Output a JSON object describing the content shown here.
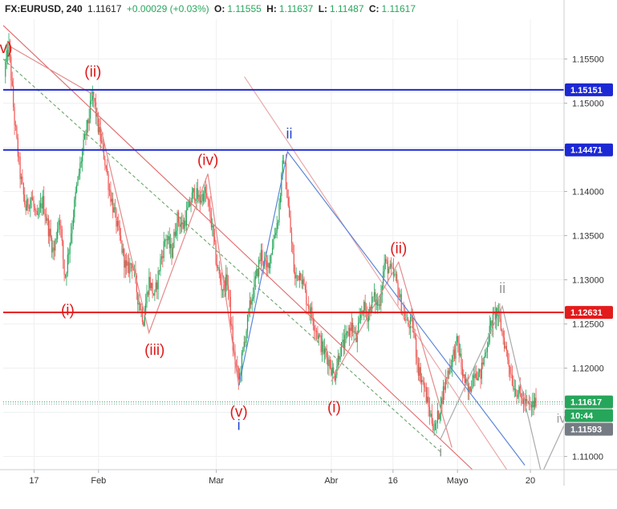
{
  "header": {
    "symbol": "FX:EURUSD, 240",
    "last": "1.11617",
    "change": "+0.00029 (+0.03%)",
    "open_label": "O:",
    "open": "1.11555",
    "high_label": "H:",
    "high": "1.11637",
    "low_label": "L:",
    "low": "1.11487",
    "close_label": "C:",
    "close": "1.11617"
  },
  "chart_data": {
    "type": "candlestick",
    "ylim": [
      1.1085,
      1.1595
    ],
    "xlim": [
      0,
      100
    ],
    "y_ticks": [
      "1.15500",
      "1.15000",
      "1.14500",
      "1.14000",
      "1.13500",
      "1.13000",
      "1.12500",
      "1.12000",
      "1.11500",
      "1.11000"
    ],
    "x_ticks": [
      {
        "label": "17",
        "x": 5.5
      },
      {
        "label": "Feb",
        "x": 17
      },
      {
        "label": "Mar",
        "x": 38
      },
      {
        "label": "Abr",
        "x": 58.5
      },
      {
        "label": "16",
        "x": 69.5
      },
      {
        "label": "Mayo",
        "x": 81
      },
      {
        "label": "20",
        "x": 94
      }
    ],
    "path": [
      [
        0,
        1.153
      ],
      [
        1,
        1.1565
      ],
      [
        2,
        1.148
      ],
      [
        3,
        1.142
      ],
      [
        4,
        1.138
      ],
      [
        5,
        1.1395
      ],
      [
        6,
        1.1365
      ],
      [
        7,
        1.139
      ],
      [
        8,
        1.136
      ],
      [
        9,
        1.133
      ],
      [
        10,
        1.1375
      ],
      [
        11,
        1.13
      ],
      [
        12,
        1.135
      ],
      [
        13,
        1.14
      ],
      [
        14,
        1.144
      ],
      [
        15,
        1.1475
      ],
      [
        16,
        1.151
      ],
      [
        17,
        1.147
      ],
      [
        18,
        1.144
      ],
      [
        19,
        1.14
      ],
      [
        20,
        1.137
      ],
      [
        21,
        1.134
      ],
      [
        22,
        1.131
      ],
      [
        23,
        1.132
      ],
      [
        24,
        1.128
      ],
      [
        25,
        1.1255
      ],
      [
        26,
        1.13
      ],
      [
        27,
        1.128
      ],
      [
        28,
        1.132
      ],
      [
        29,
        1.135
      ],
      [
        30,
        1.133
      ],
      [
        31,
        1.137
      ],
      [
        32,
        1.136
      ],
      [
        33,
        1.138
      ],
      [
        34,
        1.14
      ],
      [
        35,
        1.139
      ],
      [
        36,
        1.14
      ],
      [
        37,
        1.137
      ],
      [
        38,
        1.132
      ],
      [
        39,
        1.129
      ],
      [
        40,
        1.13
      ],
      [
        41,
        1.122
      ],
      [
        42,
        1.1185
      ],
      [
        43,
        1.123
      ],
      [
        44,
        1.127
      ],
      [
        45,
        1.13
      ],
      [
        46,
        1.133
      ],
      [
        47,
        1.131
      ],
      [
        48,
        1.134
      ],
      [
        49,
        1.137
      ],
      [
        50,
        1.144
      ],
      [
        51,
        1.137
      ],
      [
        52,
        1.13
      ],
      [
        53,
        1.131
      ],
      [
        54,
        1.128
      ],
      [
        55,
        1.126
      ],
      [
        56,
        1.124
      ],
      [
        57,
        1.122
      ],
      [
        58,
        1.121
      ],
      [
        59,
        1.119
      ],
      [
        60,
        1.122
      ],
      [
        61,
        1.123
      ],
      [
        62,
        1.125
      ],
      [
        63,
        1.123
      ],
      [
        64,
        1.127
      ],
      [
        65,
        1.126
      ],
      [
        66,
        1.128
      ],
      [
        67,
        1.127
      ],
      [
        68,
        1.132
      ],
      [
        69,
        1.131
      ],
      [
        70,
        1.13
      ],
      [
        71,
        1.127
      ],
      [
        72,
        1.125
      ],
      [
        73,
        1.125
      ],
      [
        74,
        1.12
      ],
      [
        75,
        1.118
      ],
      [
        76,
        1.115
      ],
      [
        77,
        1.113
      ],
      [
        78,
        1.116
      ],
      [
        79,
        1.119
      ],
      [
        80,
        1.121
      ],
      [
        81,
        1.123
      ],
      [
        82,
        1.119
      ],
      [
        83,
        1.117
      ],
      [
        84,
        1.12
      ],
      [
        85,
        1.119
      ],
      [
        86,
        1.122
      ],
      [
        87,
        1.125
      ],
      [
        88,
        1.1265
      ],
      [
        89,
        1.124
      ],
      [
        90,
        1.121
      ],
      [
        91,
        1.118
      ],
      [
        92,
        1.117
      ],
      [
        93,
        1.116
      ],
      [
        94,
        1.1155
      ],
      [
        95,
        1.1162
      ]
    ],
    "horizontal_lines": [
      {
        "price": 1.15151,
        "color": "#1c28d4",
        "label": "1.15151"
      },
      {
        "price": 1.14471,
        "color": "#1c28d4",
        "label": "1.14471"
      },
      {
        "price": 1.12631,
        "color": "#e31b1b",
        "label": "1.12631"
      }
    ],
    "price_tags": [
      {
        "label": "1.11617",
        "price": 1.11617,
        "color": "#26a65b"
      },
      {
        "label": "10:44",
        "price": 1.1145,
        "color": "#26a65b"
      },
      {
        "label": "1.11593",
        "price": 1.11593,
        "color": "#757b83"
      }
    ],
    "wave_labels": [
      {
        "text": "v)",
        "x": 0.5,
        "y": 1.1557,
        "color": "#e01a1a",
        "size": 19
      },
      {
        "text": "(ii)",
        "x": 16,
        "y": 1.153,
        "color": "#e01a1a",
        "size": 19
      },
      {
        "text": "(iv)",
        "x": 36.5,
        "y": 1.143,
        "color": "#e01a1a",
        "size": 19
      },
      {
        "text": "(i)",
        "x": 11.5,
        "y": 1.126,
        "color": "#e01a1a",
        "size": 19
      },
      {
        "text": "(iii)",
        "x": 27,
        "y": 1.1215,
        "color": "#e01a1a",
        "size": 19
      },
      {
        "text": "(v)",
        "x": 42,
        "y": 1.1145,
        "color": "#e01a1a",
        "size": 19
      },
      {
        "text": "(i)",
        "x": 59,
        "y": 1.115,
        "color": "#e01a1a",
        "size": 19
      },
      {
        "text": "(ii)",
        "x": 70.5,
        "y": 1.133,
        "color": "#e01a1a",
        "size": 19
      },
      {
        "text": "ii",
        "x": 51,
        "y": 1.146,
        "color": "#2443c9",
        "size": 18
      },
      {
        "text": "i",
        "x": 42,
        "y": 1.113,
        "color": "#2443c9",
        "size": 18
      },
      {
        "text": "ii",
        "x": 89,
        "y": 1.1285,
        "color": "#9b9b9b",
        "size": 18
      },
      {
        "text": "i",
        "x": 78,
        "y": 1.11,
        "color": "#9b9b9b",
        "size": 18
      },
      {
        "text": "iv",
        "x": 99.5,
        "y": 1.1138,
        "color": "#9b9b9b",
        "size": 16
      }
    ],
    "channel_lines": [
      {
        "x1": 0,
        "y1": 1.1588,
        "x2": 84,
        "y2": 1.1083,
        "color": "#e06a6a",
        "dash": false
      },
      {
        "x1": 0,
        "y1": 1.155,
        "x2": 78,
        "y2": 1.1105,
        "color": "#6aa66a",
        "dash": true
      },
      {
        "x1": 43,
        "y1": 1.153,
        "x2": 90,
        "y2": 1.1083,
        "color": "#e9a2a2",
        "dash": false
      }
    ],
    "wave_paths": [
      {
        "color": "#e38a8a",
        "points": [
          [
            1,
            1.1565
          ],
          [
            16,
            1.151
          ],
          [
            26,
            1.124
          ],
          [
            36.5,
            1.142
          ],
          [
            42,
            1.118
          ]
        ]
      },
      {
        "color": "#e38a8a",
        "points": [
          [
            58.5,
            1.1185
          ],
          [
            70.5,
            1.132
          ],
          [
            80,
            1.111
          ]
        ]
      },
      {
        "color": "#5b86d8",
        "points": [
          [
            42,
            1.118
          ],
          [
            50.7,
            1.1445
          ],
          [
            93,
            1.109
          ]
        ]
      },
      {
        "color": "#aaaaaa",
        "points": [
          [
            78,
            1.112
          ],
          [
            89,
            1.127
          ],
          [
            96,
            1.108
          ]
        ]
      },
      {
        "color": "#aaaaaa",
        "points": [
          [
            96,
            1.108
          ],
          [
            100,
            1.1135
          ]
        ]
      }
    ]
  }
}
